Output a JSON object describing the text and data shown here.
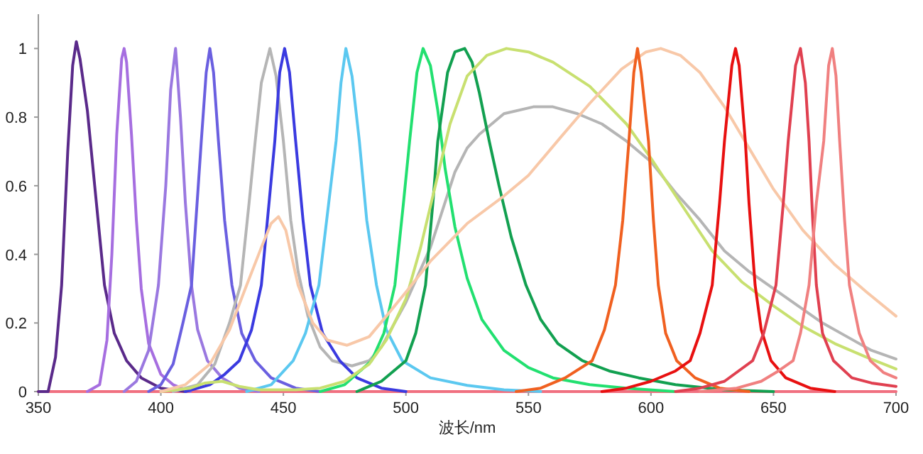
{
  "chart_data": {
    "type": "line",
    "xlabel": "波长/nm",
    "xlim": [
      350,
      700
    ],
    "xticks": [
      350,
      400,
      450,
      500,
      550,
      600,
      650,
      700
    ],
    "ylim": [
      0,
      1.1
    ],
    "yticks": [
      0,
      0.2,
      0.4,
      0.6,
      0.8,
      1
    ],
    "series": [
      {
        "color": "#f07080",
        "x": [
          350,
          700
        ],
        "values": [
          0,
          0
        ]
      },
      {
        "color": "#5a2a8a",
        "x": [
          350,
          354,
          357,
          359.5,
          362,
          364,
          365.5,
          367,
          370,
          373,
          377,
          381,
          386,
          392,
          400,
          410
        ],
        "values": [
          0,
          0,
          0.1,
          0.31,
          0.7,
          0.95,
          1.02,
          0.97,
          0.82,
          0.6,
          0.31,
          0.17,
          0.09,
          0.04,
          0.01,
          0
        ]
      },
      {
        "color": "#a66ee0",
        "x": [
          370,
          375,
          378,
          380,
          382,
          384,
          385,
          386,
          388,
          390,
          392,
          395,
          400,
          405,
          412
        ],
        "values": [
          0,
          0.02,
          0.15,
          0.4,
          0.75,
          0.97,
          1.0,
          0.96,
          0.75,
          0.5,
          0.3,
          0.14,
          0.05,
          0.02,
          0
        ]
      },
      {
        "color": "#9a78e0",
        "x": [
          385,
          390,
          395,
          399,
          402,
          404,
          406,
          408,
          410,
          412.5,
          415,
          419,
          425,
          432,
          440
        ],
        "values": [
          0,
          0.03,
          0.12,
          0.31,
          0.6,
          0.88,
          1.0,
          0.8,
          0.55,
          0.31,
          0.18,
          0.09,
          0.04,
          0.01,
          0
        ]
      },
      {
        "color": "#6a5fe0",
        "x": [
          395,
          400,
          405,
          409,
          412.5,
          416.5,
          418.5,
          420,
          421.5,
          423.5,
          426,
          429,
          433,
          438.5,
          445,
          455,
          465
        ],
        "values": [
          0,
          0.02,
          0.08,
          0.2,
          0.31,
          0.73,
          0.93,
          1.0,
          0.93,
          0.73,
          0.5,
          0.31,
          0.17,
          0.09,
          0.04,
          0.01,
          0
        ]
      },
      {
        "color": "#b5b5b5",
        "x": [
          405,
          415,
          422,
          428,
          432.5,
          436,
          438.5,
          441,
          444.5,
          447,
          450,
          453,
          456,
          460,
          465,
          470,
          478,
          485,
          490,
          500,
          510,
          520,
          525,
          530,
          540,
          552,
          560,
          570,
          580,
          590,
          600,
          610,
          620,
          630,
          640,
          650,
          660,
          670,
          680,
          690,
          700
        ],
        "values": [
          0,
          0.02,
          0.08,
          0.2,
          0.31,
          0.55,
          0.73,
          0.9,
          1.0,
          0.92,
          0.73,
          0.5,
          0.35,
          0.22,
          0.13,
          0.09,
          0.075,
          0.09,
          0.13,
          0.26,
          0.42,
          0.64,
          0.71,
          0.75,
          0.81,
          0.83,
          0.83,
          0.81,
          0.78,
          0.73,
          0.67,
          0.58,
          0.5,
          0.41,
          0.35,
          0.3,
          0.25,
          0.2,
          0.16,
          0.12,
          0.095
        ]
      },
      {
        "color": "#3a3ae0",
        "x": [
          410,
          420,
          426,
          432,
          437,
          441,
          446.5,
          448.5,
          450.5,
          452.5,
          455,
          458,
          461,
          466,
          473,
          480,
          490,
          500
        ],
        "values": [
          0,
          0.02,
          0.05,
          0.09,
          0.18,
          0.31,
          0.73,
          0.93,
          1.0,
          0.93,
          0.73,
          0.5,
          0.31,
          0.17,
          0.09,
          0.04,
          0.01,
          0
        ]
      },
      {
        "color": "#5bc8f0",
        "x": [
          435,
          445,
          454,
          459,
          464.5,
          468.5,
          471.5,
          473.5,
          475.5,
          478,
          481,
          484,
          488,
          492,
          498.5,
          510,
          525,
          540,
          555
        ],
        "values": [
          0,
          0.02,
          0.09,
          0.17,
          0.31,
          0.55,
          0.73,
          0.9,
          1.0,
          0.92,
          0.73,
          0.5,
          0.31,
          0.18,
          0.09,
          0.04,
          0.018,
          0.005,
          0
        ]
      },
      {
        "color": "#22e070",
        "x": [
          465,
          475,
          486,
          491,
          495.5,
          499,
          501.5,
          504.5,
          507,
          510,
          513,
          516,
          520,
          525,
          531,
          540,
          550,
          560,
          575,
          590,
          610
        ],
        "values": [
          0,
          0.02,
          0.09,
          0.17,
          0.31,
          0.55,
          0.73,
          0.93,
          1.0,
          0.95,
          0.82,
          0.65,
          0.48,
          0.33,
          0.21,
          0.12,
          0.07,
          0.04,
          0.02,
          0.01,
          0
        ]
      },
      {
        "color": "#12a050",
        "x": [
          480,
          490,
          500,
          504,
          508,
          511,
          513,
          517,
          520,
          524,
          527,
          530,
          534,
          538,
          543,
          549,
          555,
          562,
          572,
          583,
          595,
          610,
          630,
          650
        ],
        "values": [
          0,
          0.03,
          0.09,
          0.17,
          0.31,
          0.55,
          0.73,
          0.93,
          0.99,
          1.0,
          0.96,
          0.87,
          0.73,
          0.6,
          0.45,
          0.31,
          0.21,
          0.14,
          0.09,
          0.06,
          0.04,
          0.02,
          0.005,
          0
        ]
      },
      {
        "color": "#c8e070",
        "x": [
          400,
          412,
          418,
          425,
          432,
          440,
          455,
          465,
          475,
          485,
          492,
          500,
          506,
          512,
          518,
          525,
          533,
          541,
          550,
          560,
          575,
          590,
          600,
          612,
          625,
          637,
          650,
          662,
          675,
          688,
          700
        ],
        "values": [
          0,
          0.01,
          0.025,
          0.03,
          0.015,
          0.005,
          0.005,
          0.01,
          0.03,
          0.08,
          0.15,
          0.27,
          0.42,
          0.6,
          0.78,
          0.92,
          0.98,
          1.0,
          0.99,
          0.96,
          0.89,
          0.78,
          0.68,
          0.55,
          0.41,
          0.32,
          0.25,
          0.19,
          0.14,
          0.1,
          0.066
        ]
      },
      {
        "color": "#f8c8a8",
        "x": [
          400,
          410,
          420,
          428,
          435,
          441,
          445,
          448,
          451,
          456,
          462,
          468,
          476,
          485,
          492,
          500,
          510,
          525,
          540,
          550,
          563,
          575,
          588,
          598,
          604,
          612,
          620,
          630,
          640,
          650,
          662,
          675,
          688,
          700
        ],
        "values": [
          0,
          0.02,
          0.08,
          0.18,
          0.31,
          0.42,
          0.49,
          0.51,
          0.47,
          0.31,
          0.2,
          0.15,
          0.135,
          0.16,
          0.22,
          0.29,
          0.38,
          0.49,
          0.57,
          0.63,
          0.74,
          0.84,
          0.94,
          0.99,
          1.0,
          0.98,
          0.93,
          0.83,
          0.71,
          0.59,
          0.47,
          0.37,
          0.29,
          0.22
        ]
      },
      {
        "color": "#f06020",
        "x": [
          545,
          555,
          565,
          576,
          581,
          585.5,
          588.5,
          591,
          593,
          594.5,
          596,
          599,
          601,
          603,
          606,
          610.5,
          618,
          628,
          640
        ],
        "values": [
          0,
          0.01,
          0.04,
          0.09,
          0.18,
          0.31,
          0.5,
          0.73,
          0.93,
          1.0,
          0.93,
          0.73,
          0.5,
          0.31,
          0.17,
          0.09,
          0.04,
          0.01,
          0
        ]
      },
      {
        "color": "#e81010",
        "x": [
          580,
          590,
          600,
          610,
          616,
          620,
          625,
          628,
          630,
          633,
          634.5,
          636,
          638.5,
          640,
          642.5,
          645,
          649,
          655,
          665,
          675
        ],
        "values": [
          0,
          0.01,
          0.03,
          0.06,
          0.09,
          0.17,
          0.31,
          0.55,
          0.73,
          0.95,
          1.0,
          0.95,
          0.73,
          0.55,
          0.31,
          0.18,
          0.09,
          0.04,
          0.01,
          0
        ]
      },
      {
        "color": "#e04050",
        "x": [
          610,
          620,
          630,
          641.5,
          646,
          651,
          654,
          656,
          659,
          661,
          663,
          664.5,
          666,
          667.5,
          670,
          674.5,
          682,
          690,
          700
        ],
        "values": [
          0,
          0.01,
          0.03,
          0.09,
          0.17,
          0.31,
          0.55,
          0.73,
          0.95,
          1.0,
          0.9,
          0.73,
          0.5,
          0.31,
          0.17,
          0.09,
          0.04,
          0.025,
          0.015
        ]
      },
      {
        "color": "#f08080",
        "x": [
          620,
          635,
          645,
          652,
          658,
          661,
          664.5,
          667.5,
          670.5,
          672.5,
          674,
          675.5,
          677,
          679,
          681,
          685,
          689.5,
          695,
          700
        ],
        "values": [
          0,
          0.01,
          0.03,
          0.06,
          0.09,
          0.17,
          0.31,
          0.55,
          0.73,
          0.95,
          1.0,
          0.92,
          0.73,
          0.5,
          0.31,
          0.17,
          0.09,
          0.055,
          0.04
        ]
      }
    ]
  }
}
